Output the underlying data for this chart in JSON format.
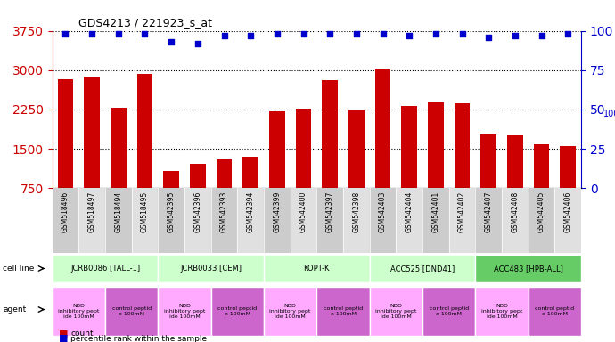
{
  "title": "GDS4213 / 221923_s_at",
  "samples": [
    "GSM518496",
    "GSM518497",
    "GSM518494",
    "GSM518495",
    "GSM542395",
    "GSM542396",
    "GSM542393",
    "GSM542394",
    "GSM542399",
    "GSM542400",
    "GSM542397",
    "GSM542398",
    "GSM542403",
    "GSM542404",
    "GSM542401",
    "GSM542402",
    "GSM542407",
    "GSM542408",
    "GSM542405",
    "GSM542406"
  ],
  "bar_values": [
    2820,
    2880,
    2280,
    2920,
    1080,
    1220,
    1300,
    1340,
    2220,
    2260,
    2800,
    2240,
    3020,
    2320,
    2380,
    2360,
    1780,
    1760,
    1580,
    1560
  ],
  "percentile_values": [
    98,
    98,
    98,
    98,
    93,
    92,
    97,
    97,
    98,
    98,
    98,
    98,
    98,
    97,
    98,
    98,
    96,
    97,
    97,
    98
  ],
  "bar_color": "#cc0000",
  "percentile_color": "#0000cc",
  "ylim_left": [
    750,
    3750
  ],
  "ylim_right": [
    0,
    100
  ],
  "yticks_left": [
    750,
    1500,
    2250,
    3000,
    3750
  ],
  "yticks_right": [
    0,
    25,
    50,
    75,
    100
  ],
  "cell_lines": [
    {
      "label": "JCRB0086 [TALL-1]",
      "start": 0,
      "end": 4,
      "color": "#ccffcc"
    },
    {
      "label": "JCRB0033 [CEM]",
      "start": 4,
      "end": 8,
      "color": "#ccffcc"
    },
    {
      "label": "KOPT-K",
      "start": 8,
      "end": 12,
      "color": "#ccffcc"
    },
    {
      "label": "ACC525 [DND41]",
      "start": 12,
      "end": 16,
      "color": "#ccffcc"
    },
    {
      "label": "ACC483 [HPB-ALL]",
      "start": 16,
      "end": 20,
      "color": "#66cc66"
    }
  ],
  "agents": [
    {
      "label": "NBD\ninhibitory pept\nide 100mM",
      "start": 0,
      "end": 2,
      "color": "#ffaaff"
    },
    {
      "label": "control peptid\ne 100mM",
      "start": 2,
      "end": 4,
      "color": "#cc66cc"
    },
    {
      "label": "NBD\ninhibitory pept\nide 100mM",
      "start": 4,
      "end": 6,
      "color": "#ffaaff"
    },
    {
      "label": "control peptid\ne 100mM",
      "start": 6,
      "end": 8,
      "color": "#cc66cc"
    },
    {
      "label": "NBD\ninhibitory pept\nide 100mM",
      "start": 8,
      "end": 10,
      "color": "#ffaaff"
    },
    {
      "label": "control peptid\ne 100mM",
      "start": 10,
      "end": 12,
      "color": "#cc66cc"
    },
    {
      "label": "NBD\ninhibitory pept\nide 100mM",
      "start": 12,
      "end": 14,
      "color": "#ffaaff"
    },
    {
      "label": "control peptid\ne 100mM",
      "start": 14,
      "end": 16,
      "color": "#cc66cc"
    },
    {
      "label": "NBD\ninhibitory pept\nide 100mM",
      "start": 16,
      "end": 18,
      "color": "#ffaaff"
    },
    {
      "label": "control peptid\ne 100mM",
      "start": 18,
      "end": 20,
      "color": "#cc66cc"
    }
  ],
  "background_color": "#ffffff",
  "plot_bg_color": "#ffffff",
  "tick_label_color_left": "#cc0000",
  "tick_label_color_right": "#0000cc",
  "gridline_style": "dotted",
  "gridline_color": "#000000"
}
